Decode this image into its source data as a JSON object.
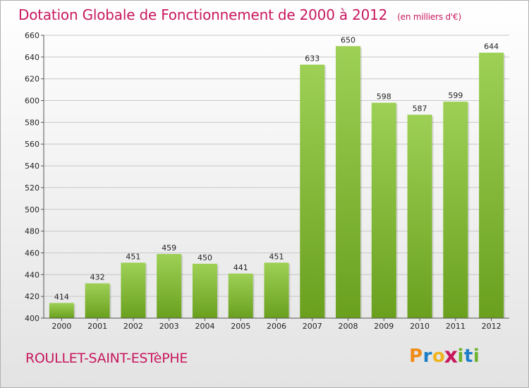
{
  "title": "Dotation Globale de Fonctionnement de 2000 à 2012",
  "subtitle": "(en milliers d'€)",
  "commune": "ROULLET-SAINT-ESTèPHE",
  "logo": {
    "letters": [
      "P",
      "r",
      "o",
      "x",
      "i",
      "t",
      "i"
    ],
    "colors": [
      "#f08c1a",
      "#1e7fc8",
      "#f0b41e",
      "#c8185e",
      "#6eb42d",
      "#1e7fc8",
      "#6eb42d"
    ]
  },
  "colors": {
    "bar_top": "#9dd055",
    "bar_bottom": "#6aa01e",
    "title": "#c8185e",
    "grid": "#c8c8c8",
    "axis_text": "#222222"
  },
  "chart_data": {
    "type": "bar",
    "title": "Dotation Globale de Fonctionnement de 2000 à 2012",
    "subtitle": "(en milliers d'€)",
    "categories": [
      "2000",
      "2001",
      "2002",
      "2003",
      "2004",
      "2005",
      "2006",
      "2007",
      "2008",
      "2009",
      "2010",
      "2011",
      "2012"
    ],
    "values": [
      414,
      432,
      451,
      459,
      450,
      441,
      451,
      633,
      650,
      598,
      587,
      599,
      644
    ],
    "ylim": [
      400,
      660
    ],
    "yticks": [
      400,
      420,
      440,
      460,
      480,
      500,
      520,
      540,
      560,
      580,
      600,
      620,
      640,
      660
    ],
    "grid": true,
    "legend": "none",
    "data_labels": true
  }
}
